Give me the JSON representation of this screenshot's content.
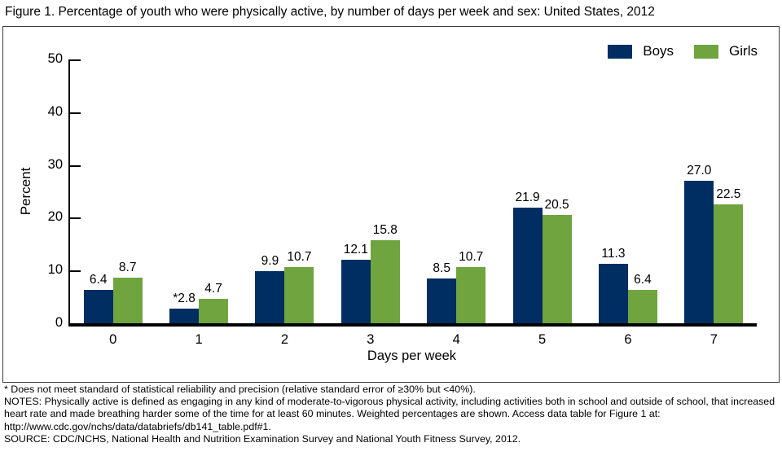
{
  "header": {
    "title": "Figure 1. Percentage of youth who were physically active, by number of days per week and sex: United States, 2012"
  },
  "chart_data": {
    "type": "bar",
    "title": "Figure 1. Percentage of youth who were physically active, by number of days per week and sex: United States, 2012",
    "categories": [
      "0",
      "1",
      "2",
      "3",
      "4",
      "5",
      "6",
      "7"
    ],
    "series": [
      {
        "name": "Boys",
        "color": "#002D62",
        "values": [
          6.4,
          2.8,
          9.9,
          12.1,
          8.5,
          21.9,
          11.3,
          27.0
        ],
        "labels": [
          "6.4",
          "*2.8",
          "9.9",
          "12.1",
          "8.5",
          "21.9",
          "11.3",
          "27.0"
        ]
      },
      {
        "name": "Girls",
        "color": "#6FA43F",
        "values": [
          8.7,
          4.7,
          10.7,
          15.8,
          10.7,
          20.5,
          6.4,
          22.5
        ],
        "labels": [
          "8.7",
          "4.7",
          "10.7",
          "15.8",
          "10.7",
          "20.5",
          "6.4",
          "22.5"
        ]
      }
    ],
    "xlabel": "Days per week",
    "ylabel": "Percent",
    "ylim": [
      0,
      50
    ],
    "yticks": [
      0,
      10,
      20,
      30,
      40,
      50
    ],
    "legend_position": "top-right",
    "grid": false
  },
  "footnotes": {
    "asterisk": "* Does not meet standard of statistical reliability and precision (relative standard error of ≥30% but <40%).",
    "notes": "NOTES: Physically active is defined as engaging in any kind of moderate-to-vigorous physical activity, including activities both in school and outside of school, that increased heart rate and made breathing harder some of the time for at least 60 minutes. Weighted percentages are shown. Access data table for Figure 1 at: http://www.cdc.gov/nchs/data/databriefs/db141_table.pdf#1.",
    "source": "SOURCE: CDC/NCHS, National Health and Nutrition Examination Survey and National Youth Fitness Survey, 2012."
  }
}
